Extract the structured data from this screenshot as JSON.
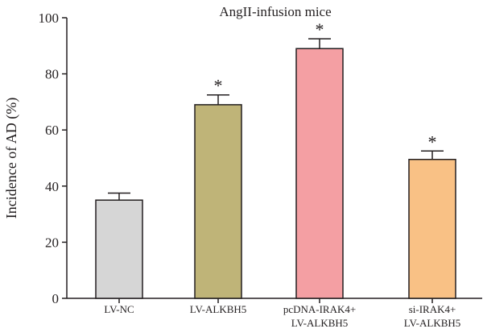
{
  "chart_data": {
    "type": "bar",
    "title": "AngII-infusion mice",
    "ylabel": "Incidence of AD (%)",
    "xlabel": "",
    "ylim": [
      0,
      100
    ],
    "yticks": [
      0,
      20,
      40,
      60,
      80,
      100
    ],
    "categories": [
      [
        "LV-NC"
      ],
      [
        "LV-ALKBH5"
      ],
      [
        "pcDNA-IRAK4+",
        "LV-ALKBH5"
      ],
      [
        "si-IRAK4+",
        "LV-ALKBH5"
      ]
    ],
    "values": [
      35,
      69,
      89,
      49.5
    ],
    "errors": [
      2.5,
      3.5,
      3.5,
      3
    ],
    "significance": [
      "",
      "*",
      "*",
      "*"
    ],
    "colors": [
      "#d6d6d6",
      "#bfb478",
      "#f49fa3",
      "#f9c185"
    ]
  }
}
